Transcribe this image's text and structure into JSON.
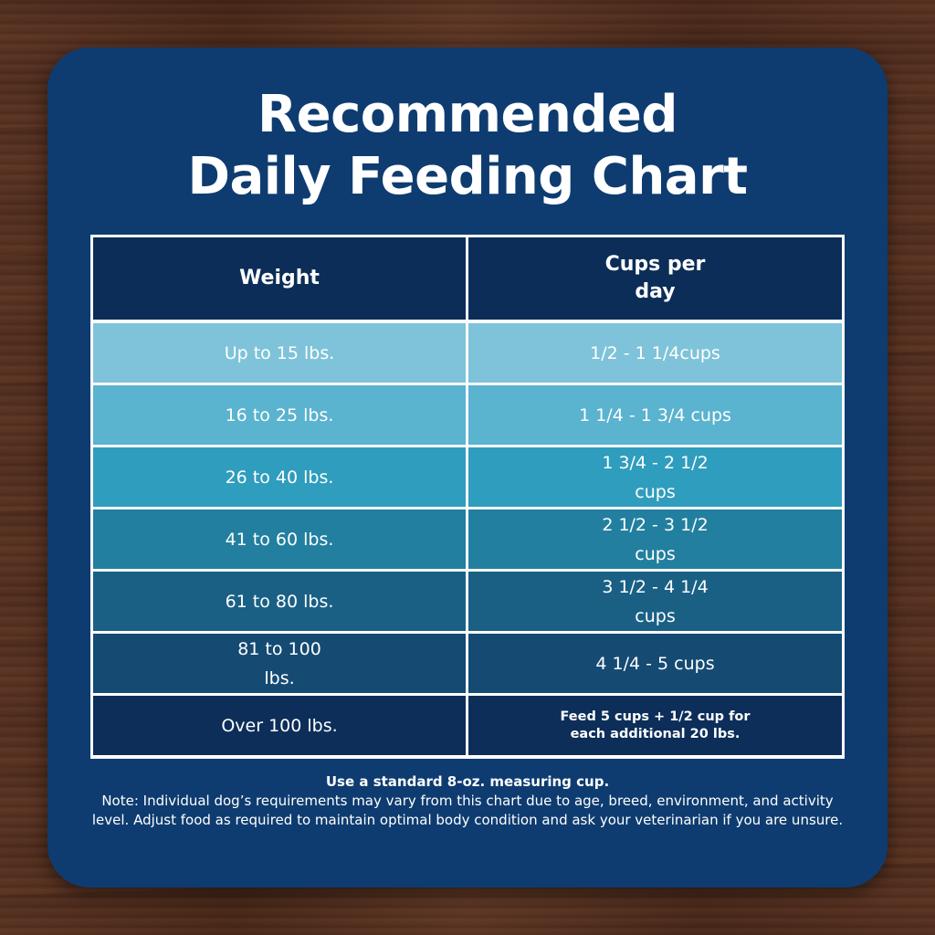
{
  "title": {
    "line1": "Recommended",
    "line2": "Daily Feeding Chart"
  },
  "table": {
    "headers": {
      "weight": "Weight",
      "cups_line1": "Cups per",
      "cups_line2": "day"
    },
    "rows": [
      {
        "weight": [
          "Up to 15 lbs."
        ],
        "cups": [
          "1/2 - 1 1/4cups"
        ]
      },
      {
        "weight": [
          "16 to 25 lbs."
        ],
        "cups": [
          "1 1/4 - 1 3/4 cups"
        ]
      },
      {
        "weight": [
          "26 to 40 lbs."
        ],
        "cups": [
          "1 3/4 - 2 1/2",
          "cups"
        ]
      },
      {
        "weight": [
          "41 to 60 lbs."
        ],
        "cups": [
          "2 1/2 - 3 1/2",
          "cups"
        ]
      },
      {
        "weight": [
          "61 to 80 lbs."
        ],
        "cups": [
          "3 1/2 - 4 1/4",
          "cups"
        ]
      },
      {
        "weight": [
          "81 to 100",
          "lbs."
        ],
        "cups": [
          "4 1/4 - 5 cups"
        ]
      },
      {
        "weight": [
          "Over 100 lbs."
        ],
        "cups": [
          "Feed 5 cups + 1/2 cup for",
          "each additional 20 lbs."
        ]
      }
    ]
  },
  "note": {
    "lead": "Use a standard 8-oz. measuring cup.",
    "body": "Note: Individual dog’s requirements may vary from this chart due to age, breed, environment, and activity level. Adjust food as required to maintain optimal body condition and ask your veterinarian if you are unsure."
  },
  "colors": {
    "card": "#0e3c70",
    "header": "#0b2d57",
    "row_shades": [
      "#7ec3d9",
      "#5ab3cf",
      "#2f9dbd",
      "#227f9f",
      "#1a6085",
      "#154a73",
      "#0c2e59"
    ]
  }
}
